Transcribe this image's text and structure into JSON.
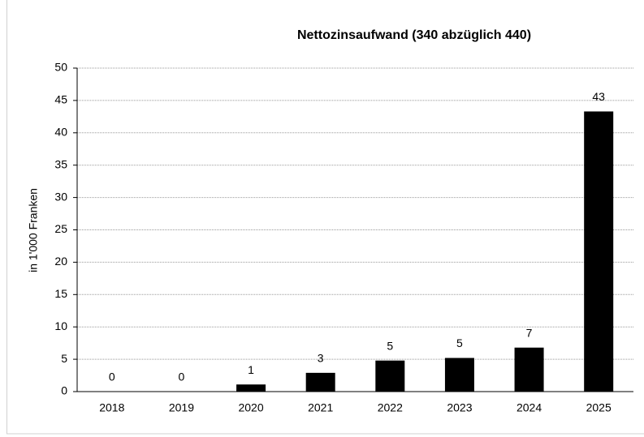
{
  "chart_data": {
    "type": "bar",
    "title": "Nettozinsaufwand (340 abzüglich 440)",
    "y_label": "in 1'000 Franken",
    "categories": [
      "2018",
      "2019",
      "2020",
      "2021",
      "2022",
      "2023",
      "2024",
      "2025"
    ],
    "values": [
      0,
      0,
      1.1,
      2.9,
      4.8,
      5.2,
      6.8,
      43.3
    ],
    "value_labels": [
      "0",
      "0",
      "1",
      "3",
      "5",
      "5",
      "7",
      "43"
    ],
    "color": "#000000",
    "ylim": [
      0,
      50
    ],
    "yticks": [
      0,
      5,
      10,
      15,
      20,
      25,
      30,
      35,
      40,
      45,
      50
    ],
    "grid": true
  }
}
